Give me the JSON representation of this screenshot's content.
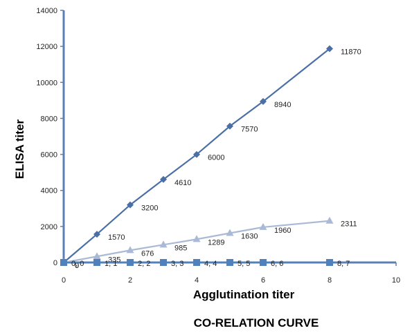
{
  "chart_data": {
    "type": "line",
    "title": "CO-RELATION CURVE",
    "xlabel": "Agglutination titer",
    "ylabel": "ELISA titer",
    "xlim": [
      0,
      10
    ],
    "ylim": [
      0,
      14000
    ],
    "xticks": [
      "0",
      "2",
      "4",
      "6",
      "8",
      "10"
    ],
    "yticks": [
      "0",
      "2000",
      "4000",
      "6000",
      "8000",
      "10000",
      "12000",
      "14000"
    ],
    "grid": false,
    "legend": "none",
    "series": [
      {
        "color": "#4a6fa5",
        "marker": "diamond",
        "points": [
          {
            "x": 0,
            "y": 0,
            "label": "0"
          },
          {
            "x": 1,
            "y": 1570,
            "label": "1570"
          },
          {
            "x": 2,
            "y": 3200,
            "label": "3200"
          },
          {
            "x": 3,
            "y": 4610,
            "label": "4610"
          },
          {
            "x": 4,
            "y": 6000,
            "label": "6000"
          },
          {
            "x": 5,
            "y": 7570,
            "label": "7570"
          },
          {
            "x": 6,
            "y": 8940,
            "label": "8940"
          },
          {
            "x": 8,
            "y": 11870,
            "label": "11870"
          }
        ]
      },
      {
        "color": "#a9b9d6",
        "marker": "triangle",
        "points": [
          {
            "x": 0,
            "y": 0,
            "label": "0"
          },
          {
            "x": 1,
            "y": 335,
            "label": "335"
          },
          {
            "x": 2,
            "y": 676,
            "label": "676"
          },
          {
            "x": 3,
            "y": 985,
            "label": "985"
          },
          {
            "x": 4,
            "y": 1289,
            "label": "1289"
          },
          {
            "x": 5,
            "y": 1630,
            "label": "1630"
          },
          {
            "x": 6,
            "y": 1960,
            "label": "1960"
          },
          {
            "x": 8,
            "y": 2311,
            "label": "2311"
          }
        ]
      },
      {
        "color": "#4f81bd",
        "marker": "square",
        "points": [
          {
            "x": 0,
            "y": 0,
            "label": "0, 0"
          },
          {
            "x": 1,
            "y": 0,
            "label": "1, 1"
          },
          {
            "x": 2,
            "y": 0,
            "label": "2, 2"
          },
          {
            "x": 3,
            "y": 0,
            "label": "3, 3"
          },
          {
            "x": 4,
            "y": 0,
            "label": "4, 4"
          },
          {
            "x": 5,
            "y": 0,
            "label": "5, 5"
          },
          {
            "x": 6,
            "y": 0,
            "label": "6, 6"
          },
          {
            "x": 8,
            "y": 0,
            "label": "8, 7"
          }
        ]
      }
    ]
  }
}
